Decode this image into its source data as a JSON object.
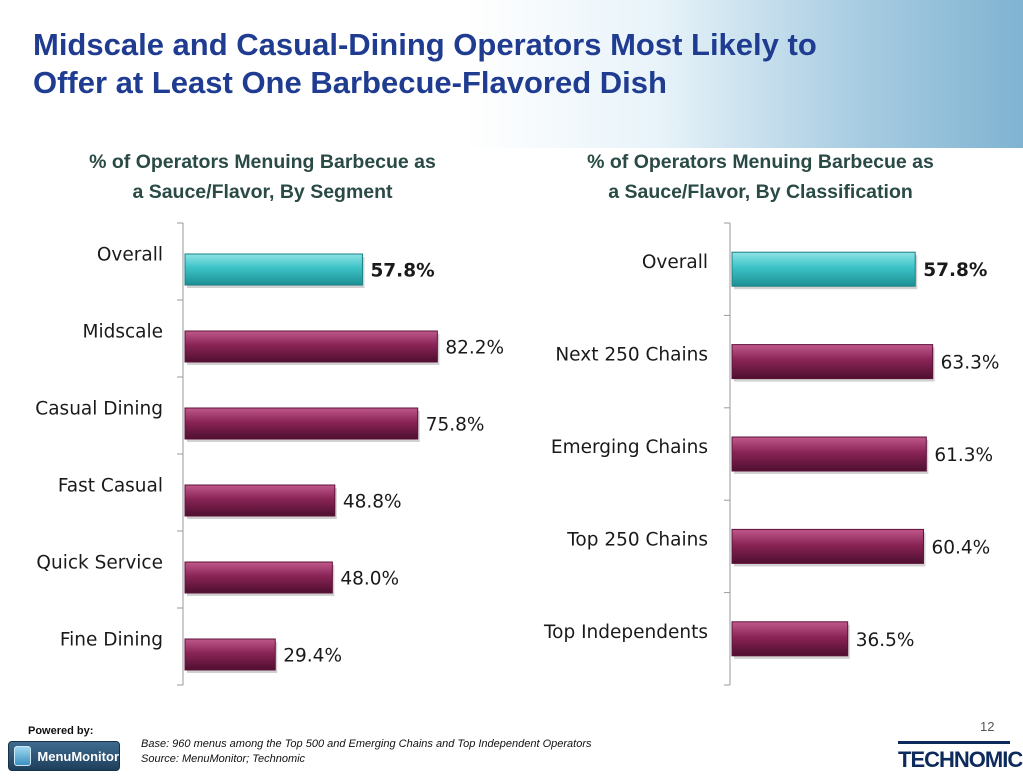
{
  "title_line1": "Midscale and Casual-Dining Operators Most Likely to",
  "title_line2": "Offer at Least One Barbecue-Flavored Dish",
  "colors": {
    "highlight": "#3cc3c6",
    "bar": "#8a2456",
    "title": "#1f3c91"
  },
  "chart_data": [
    {
      "type": "bar",
      "orientation": "horizontal",
      "title_line1": "% of Operators Menuing Barbecue as",
      "title_line2": "a Sauce/Flavor, By Segment",
      "categories": [
        "Overall",
        "Midscale",
        "Casual Dining",
        "Fast Casual",
        "Quick Service",
        "Fine Dining"
      ],
      "values": [
        57.8,
        82.2,
        75.8,
        48.8,
        48.0,
        29.4
      ],
      "value_labels": [
        "57.8%",
        "82.2%",
        "75.8%",
        "48.8%",
        "48.0%",
        "29.4%"
      ],
      "highlight_index": 0,
      "xlim": [
        0,
        100
      ],
      "grid": false
    },
    {
      "type": "bar",
      "orientation": "horizontal",
      "title_line1": "% of Operators Menuing Barbecue as",
      "title_line2": "a Sauce/Flavor, By Classification",
      "categories": [
        "Overall",
        "Next 250 Chains",
        "Emerging Chains",
        "Top 250 Chains",
        "Top Independents"
      ],
      "values": [
        57.8,
        63.3,
        61.3,
        60.4,
        36.5
      ],
      "value_labels": [
        "57.8%",
        "63.3%",
        "61.3%",
        "60.4%",
        "36.5%"
      ],
      "highlight_index": 0,
      "xlim": [
        0,
        100
      ],
      "grid": false
    }
  ],
  "footer": {
    "powered_by": "Powered by:",
    "logo_text": "MenuMonitor",
    "base_note": "Base: 960 menus among the Top 500 and Emerging Chains and Top Independent Operators",
    "source_note": "Source: MenuMonitor; Technomic",
    "page_number": "12",
    "company_logo": "TECHNOMIC"
  }
}
